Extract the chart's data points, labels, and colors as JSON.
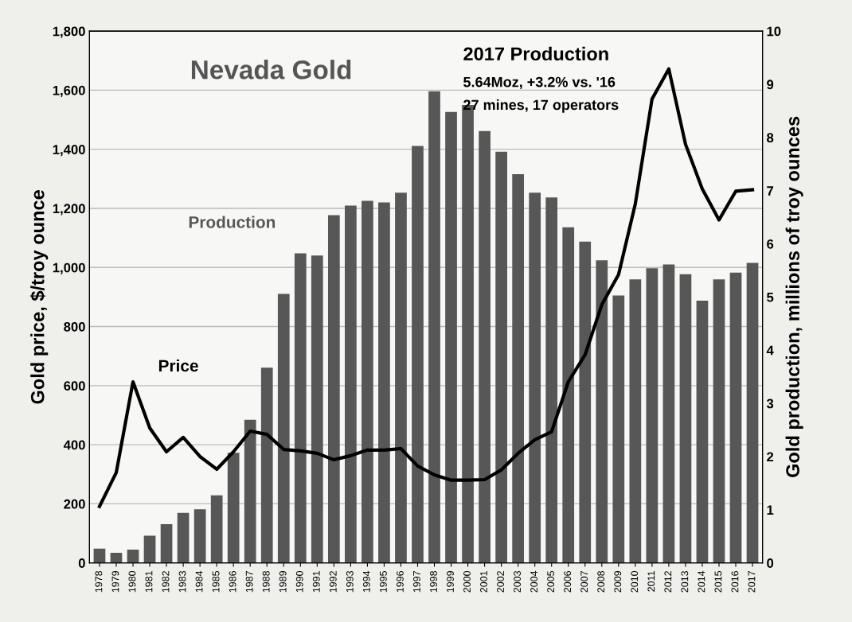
{
  "chart_data": {
    "type": "bar",
    "title": "Nevada Gold",
    "ylabel": "Gold price, $/troy ounce",
    "y2label": "Gold production, millions of troy ounces",
    "annotations": [
      "2017 Production",
      "5.64Moz, +3.2% vs. '16",
      "27 mines, 17 operators"
    ],
    "categories": [
      "1978",
      "1979",
      "1980",
      "1981",
      "1982",
      "1983",
      "1984",
      "1985",
      "1986",
      "1987",
      "1988",
      "1989",
      "1990",
      "1991",
      "1992",
      "1993",
      "1994",
      "1995",
      "1996",
      "1997",
      "1998",
      "1999",
      "2000",
      "2001",
      "2002",
      "2003",
      "2004",
      "2005",
      "2006",
      "2007",
      "2008",
      "2009",
      "2010",
      "2011",
      "2012",
      "2013",
      "2014",
      "2015",
      "2016",
      "2017"
    ],
    "series": [
      {
        "name": "Production",
        "axis": "y2",
        "color": "#575757",
        "values": [
          0.27,
          0.19,
          0.25,
          0.51,
          0.73,
          0.94,
          1.01,
          1.27,
          2.07,
          2.69,
          3.67,
          5.06,
          5.82,
          5.78,
          6.54,
          6.72,
          6.81,
          6.78,
          6.96,
          7.84,
          8.87,
          8.48,
          8.61,
          8.12,
          7.73,
          7.31,
          6.96,
          6.87,
          6.31,
          6.04,
          5.69,
          5.03,
          5.33,
          5.54,
          5.61,
          5.43,
          4.93,
          5.33,
          5.46,
          5.64
        ]
      },
      {
        "name": "Price",
        "type": "line",
        "axis": "y",
        "color": "#000000",
        "values": [
          191,
          306,
          613,
          457,
          376,
          425,
          360,
          317,
          376,
          446,
          435,
          384,
          379,
          371,
          349,
          363,
          382,
          382,
          387,
          328,
          298,
          280,
          280,
          282,
          315,
          371,
          417,
          444,
          613,
          704,
          874,
          976,
          1215,
          1570,
          1672,
          1417,
          1266,
          1161,
          1258,
          1263
        ]
      }
    ],
    "ylim": [
      0,
      1800
    ],
    "yticks": [
      0,
      200,
      400,
      600,
      800,
      {
        "value": 1000,
        "label": "1,000"
      },
      {
        "value": 1200,
        "label": "1,200"
      },
      {
        "value": 1400,
        "label": "1,400"
      },
      {
        "value": 1600,
        "label": "1,600"
      },
      {
        "value": 1800,
        "label": "1,800"
      }
    ],
    "y2lim": [
      0,
      10
    ],
    "y2ticks": [
      0,
      1,
      2,
      3,
      4,
      5,
      6,
      7,
      8,
      9,
      10
    ],
    "grid": "y",
    "legend": false,
    "marker": "none",
    "line_style": "solid"
  }
}
